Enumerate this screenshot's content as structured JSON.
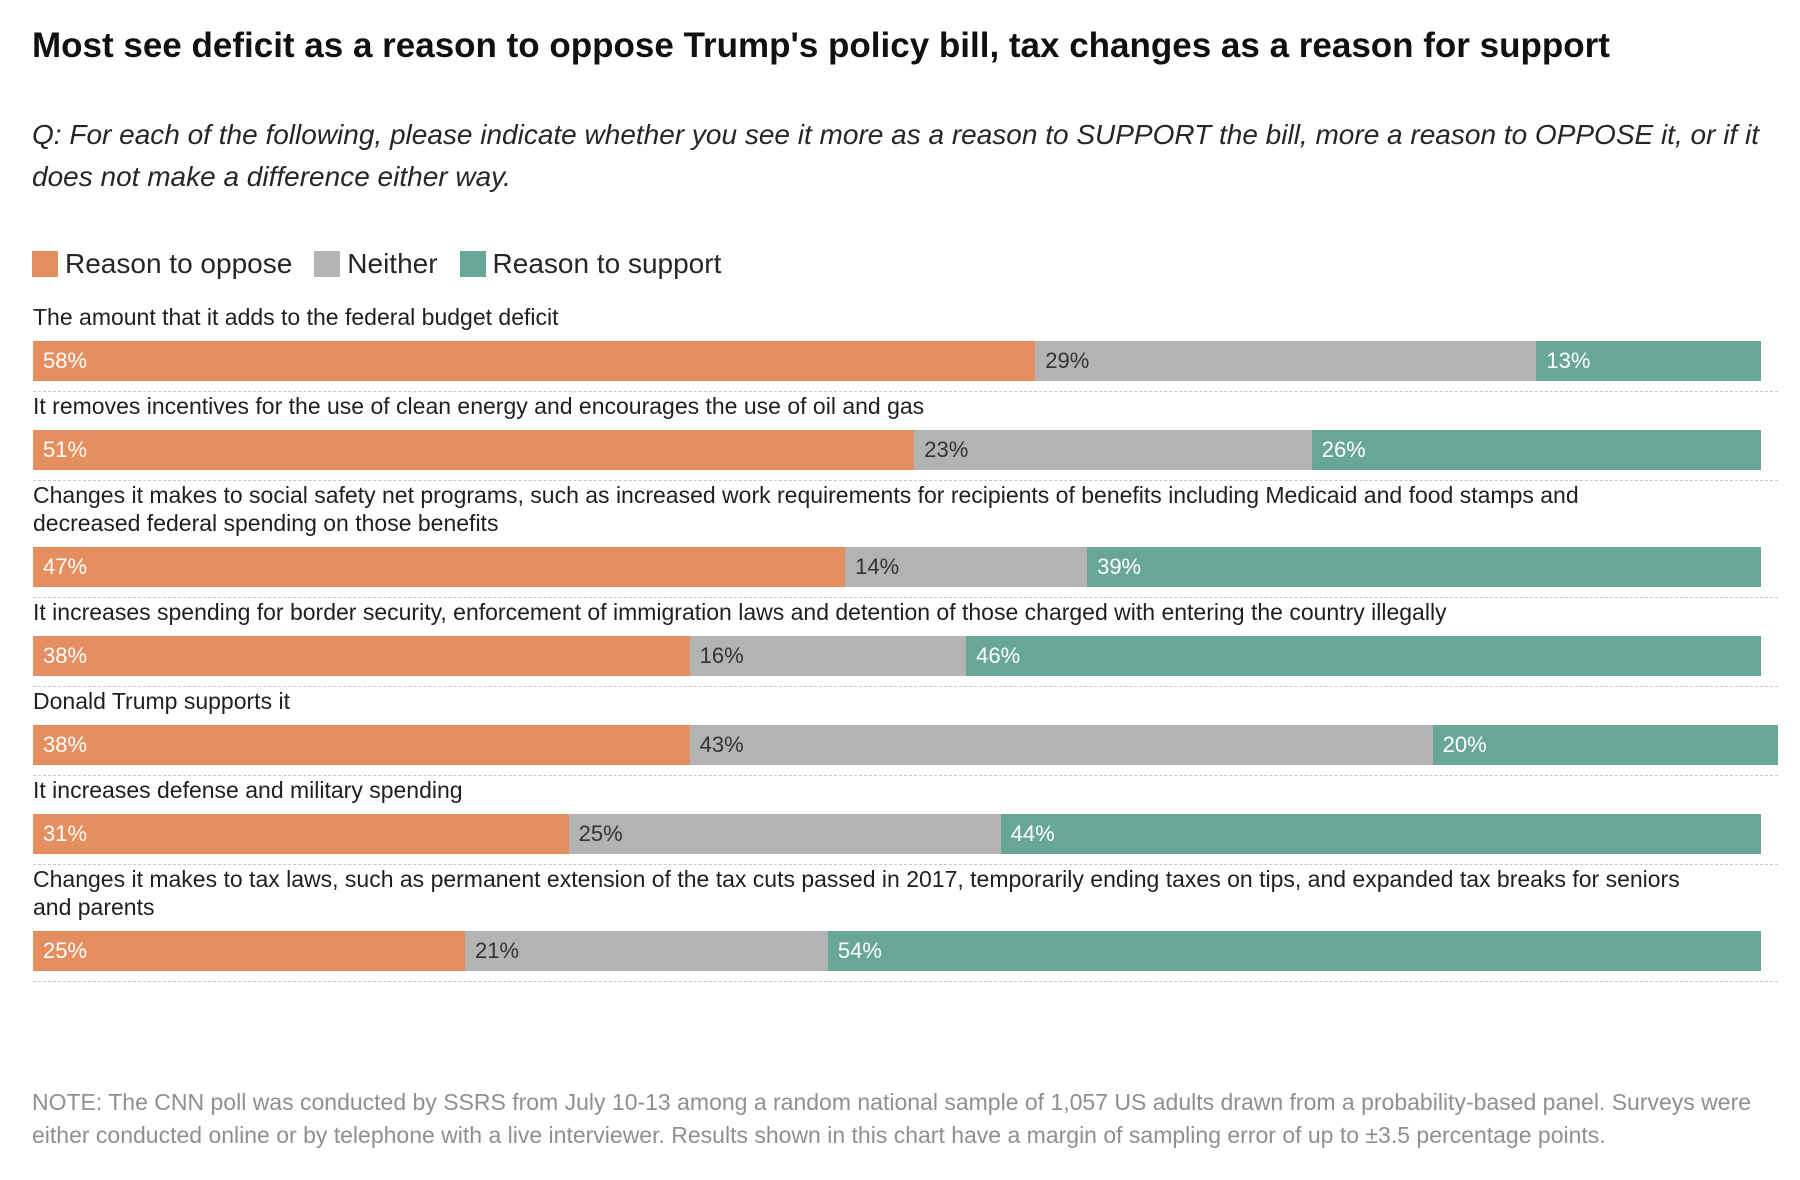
{
  "title": "Most see deficit as a reason to oppose Trump's policy bill, tax changes as a reason for support",
  "question": "Q: For each of the following, please indicate whether you see it more as a reason to SUPPORT the bill, more a reason to OPPOSE it, or if it does not make a difference either way.",
  "legend": {
    "oppose": "Reason to oppose",
    "neither": "Neither",
    "support": "Reason to support"
  },
  "colors": {
    "oppose": "#e58e5f",
    "neither": "#b3b3b3",
    "support": "#68a697"
  },
  "chart_data": {
    "type": "bar",
    "orientation": "horizontal",
    "stacked": true,
    "title": "Most see deficit as a reason to oppose Trump's policy bill, tax changes as a reason for support",
    "categories": [
      "The amount that it adds to the federal budget deficit",
      "It removes incentives for the use of clean energy and encourages the use of oil and gas",
      "Changes it makes to social safety net programs, such as increased work requirements for recipients of benefits including Medicaid and food stamps and decreased federal spending on those benefits",
      "It increases spending for border security, enforcement of immigration laws and detention of those charged with entering the country illegally",
      "Donald Trump supports it",
      "It increases defense and military spending",
      "Changes it makes to tax laws, such as permanent extension of the tax cuts passed in 2017, temporarily ending taxes on tips, and expanded tax breaks for seniors and parents"
    ],
    "label_lines": [
      [
        "The amount that it adds to the federal budget deficit"
      ],
      [
        "It removes incentives for the use of clean energy and encourages the use of oil and gas"
      ],
      [
        "Changes it makes to social safety net programs, such as increased work requirements for recipients of benefits including Medicaid and food stamps and",
        "decreased federal spending on those benefits"
      ],
      [
        "It increases spending for border security, enforcement of immigration laws and detention of those charged with entering the country illegally"
      ],
      [
        "Donald Trump supports it"
      ],
      [
        "It increases defense and military spending"
      ],
      [
        "Changes it makes to tax laws, such as permanent extension of the tax cuts passed in 2017, temporarily ending taxes on tips, and expanded tax breaks for seniors",
        "and parents"
      ]
    ],
    "series": [
      {
        "name": "Reason to oppose",
        "key": "oppose",
        "values": [
          58,
          51,
          47,
          38,
          38,
          31,
          25
        ]
      },
      {
        "name": "Neither",
        "key": "neither",
        "values": [
          29,
          23,
          14,
          16,
          43,
          25,
          21
        ]
      },
      {
        "name": "Reason to support",
        "key": "support",
        "values": [
          13,
          26,
          39,
          46,
          20,
          44,
          54
        ]
      }
    ],
    "value_suffix": "%",
    "xlim": [
      0,
      100
    ]
  },
  "note": "NOTE: The CNN poll was conducted by SSRS from July 10-13 among a random national sample of 1,057 US adults drawn from a probability-based panel. Surveys were either conducted online or by telephone with a live interviewer. Results shown in this chart have a margin of sampling error of up to ±3.5 percentage points."
}
